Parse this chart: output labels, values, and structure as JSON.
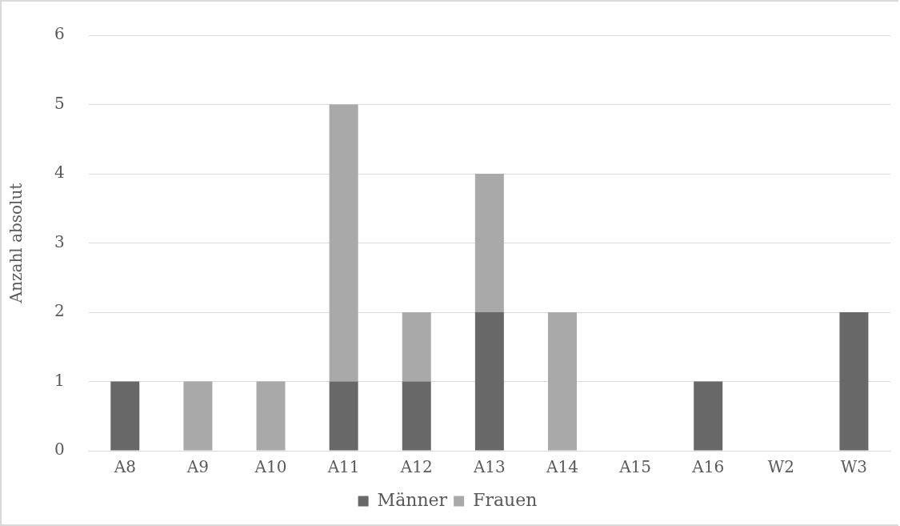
{
  "chart_data": {
    "type": "bar",
    "stacked": true,
    "ylabel": "Anzahl absolut",
    "categories": [
      "A8",
      "A9",
      "A10",
      "A11",
      "A12",
      "A13",
      "A14",
      "A15",
      "A16",
      "W2",
      "W3"
    ],
    "series": [
      {
        "name": "Männer",
        "color": "#686868",
        "values": [
          1,
          0,
          0,
          1,
          1,
          2,
          0,
          0,
          1,
          0,
          2
        ]
      },
      {
        "name": "Frauen",
        "color": "#a9a9a9",
        "values": [
          0,
          1,
          1,
          4,
          1,
          2,
          2,
          0,
          0,
          0,
          0
        ]
      }
    ],
    "ylim": [
      0,
      6
    ],
    "yticks": [
      0,
      1,
      2,
      3,
      4,
      5,
      6
    ],
    "grid": "y",
    "legend": "bottom"
  }
}
